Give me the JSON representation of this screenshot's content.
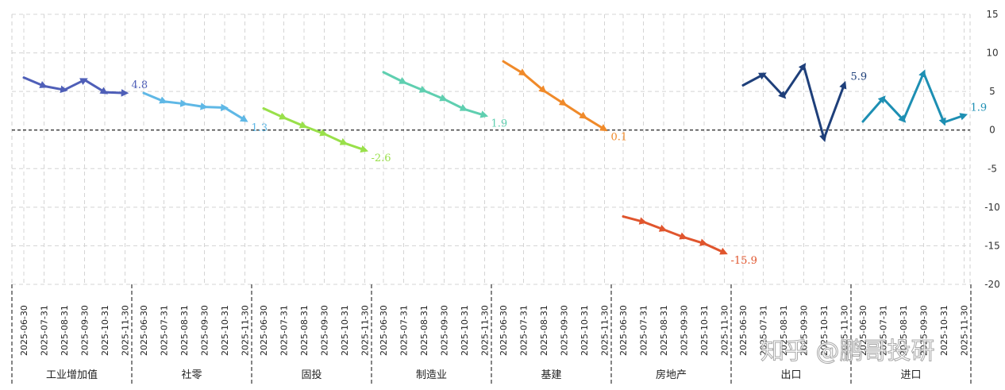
{
  "chart_data": {
    "type": "line",
    "title": "",
    "xlabel": "",
    "ylabel": "",
    "ylim": [
      -20,
      15
    ],
    "y_ticks": [
      15,
      10,
      5,
      0,
      -5,
      -10,
      -15,
      -20
    ],
    "grid": true,
    "zero_line": "dashed",
    "x_tick_labels": [
      "2025-06-30",
      "2025-07-31",
      "2025-08-31",
      "2025-09-30",
      "2025-10-31",
      "2025-11-30"
    ],
    "groups": [
      {
        "name": "工业增加值",
        "color": "#4f5fb8",
        "values": [
          6.8,
          5.7,
          5.2,
          6.5,
          4.9,
          4.8
        ],
        "end_label": "4.8"
      },
      {
        "name": "社零",
        "color": "#5fb8e6",
        "values": [
          4.8,
          3.7,
          3.4,
          3.0,
          2.9,
          1.3
        ],
        "end_label": "1.3"
      },
      {
        "name": "固投",
        "color": "#99e04a",
        "values": [
          2.8,
          1.6,
          0.5,
          -0.5,
          -1.7,
          -2.6
        ],
        "end_label": "-2.6"
      },
      {
        "name": "制造业",
        "color": "#5fcfb0",
        "values": [
          7.5,
          6.2,
          5.1,
          4.0,
          2.7,
          1.9
        ],
        "end_label": "1.9"
      },
      {
        "name": "基建",
        "color": "#f08a2a",
        "values": [
          8.9,
          7.3,
          5.1,
          3.4,
          1.7,
          0.1
        ],
        "end_label": "0.1"
      },
      {
        "name": "房地产",
        "color": "#e0552d",
        "values": [
          -11.2,
          -11.9,
          -12.9,
          -13.9,
          -14.7,
          -15.9
        ],
        "end_label": "-15.9"
      },
      {
        "name": "出口",
        "color": "#1e3f7a",
        "values": [
          5.8,
          7.2,
          4.4,
          8.3,
          -1.1,
          5.9
        ],
        "end_label": "5.9"
      },
      {
        "name": "进口",
        "color": "#1d8fb3",
        "values": [
          1.1,
          4.1,
          1.3,
          7.4,
          1.0,
          1.9
        ],
        "end_label": "1.9"
      }
    ]
  },
  "watermark": "知乎 @鹏哥投研"
}
